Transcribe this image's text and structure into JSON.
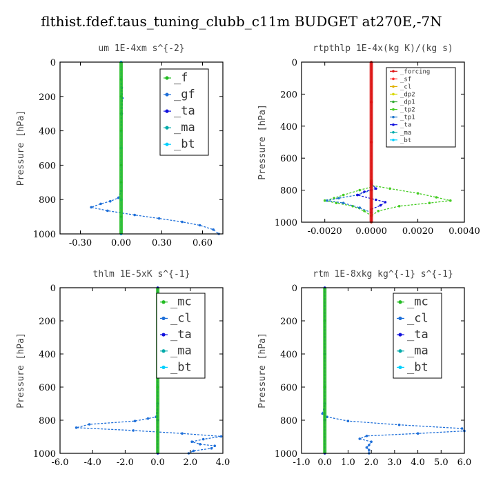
{
  "figure_title": "flthist.fdef.taus_tuning_clubb_c11m  BUDGET at270E,-7N",
  "colors": {
    "f": "#22bb22",
    "gf": "#1e6fd9",
    "ta": "#1111dd",
    "ma": "#00aaaa",
    "bt": "#00d0ff",
    "forcing": "#dd1111",
    "sf": "#ff3030",
    "cl_small": "#e0b000",
    "dp2": "#d8d800",
    "dp1": "#33aa33",
    "tp2": "#44cc22",
    "tp1": "#2277cc",
    "mc": "#22bb22",
    "cl": "#1e6fd9"
  },
  "chart_data": [
    {
      "type": "line",
      "title": "um  1E-4xm s^{-2}",
      "ylabel": "Pressure [hPa]",
      "xlim": [
        -0.45,
        0.75
      ],
      "ylim": [
        0,
        1000
      ],
      "y_inverted": true,
      "xticks": [
        -0.3,
        0.0,
        0.3,
        0.6
      ],
      "xtick_labels": [
        "-0.30",
        "0.00",
        "0.30",
        "0.60"
      ],
      "yticks": [
        0,
        200,
        400,
        600,
        800,
        1000
      ],
      "ytick_labels": [
        "0",
        "200",
        "400",
        "600",
        "800",
        "1000"
      ],
      "legend_size": "big",
      "legend": [
        "_f",
        "_gf",
        "_ta",
        "_ma",
        "_bt"
      ],
      "series": [
        {
          "name": "_f",
          "color_key": "f",
          "points": [
            [
              0.0,
              0
            ],
            [
              0.0,
              100
            ],
            [
              0.0,
              200
            ],
            [
              0.0,
              300
            ],
            [
              0.0,
              400
            ],
            [
              0.0,
              500
            ],
            [
              0.0,
              600
            ],
            [
              0.0,
              700
            ],
            [
              0.0,
              800
            ],
            [
              0.0,
              900
            ],
            [
              0.0,
              1000
            ]
          ]
        },
        {
          "name": "_gf",
          "color_key": "gf",
          "points": [
            [
              0.0,
              0
            ],
            [
              0.005,
              150
            ],
            [
              0.01,
              210
            ],
            [
              0.005,
              300
            ],
            [
              0.0,
              500
            ],
            [
              0.0,
              750
            ],
            [
              -0.02,
              790
            ],
            [
              -0.08,
              810
            ],
            [
              -0.15,
              825
            ],
            [
              -0.22,
              845
            ],
            [
              -0.1,
              865
            ],
            [
              0.1,
              890
            ],
            [
              0.28,
              910
            ],
            [
              0.45,
              930
            ],
            [
              0.58,
              950
            ],
            [
              0.68,
              975
            ],
            [
              0.72,
              1000
            ]
          ]
        },
        {
          "name": "_ta",
          "color_key": "ta",
          "points": [
            [
              0.0,
              0
            ],
            [
              0.0,
              500
            ],
            [
              0.0,
              800
            ],
            [
              0.0,
              1000
            ]
          ]
        },
        {
          "name": "_ma",
          "color_key": "ma",
          "points": [
            [
              0.0,
              0
            ],
            [
              0.0,
              500
            ],
            [
              0.0,
              800
            ],
            [
              0.0,
              1000
            ]
          ]
        },
        {
          "name": "_bt",
          "color_key": "bt",
          "points": [
            [
              0.0,
              0
            ],
            [
              0.0,
              500
            ],
            [
              0.0,
              800
            ],
            [
              0.0,
              1000
            ]
          ]
        }
      ]
    },
    {
      "type": "line",
      "title": "rtpthlp  1E-4x(kg K)/(kg s)",
      "ylabel": "Pressure [hPa]",
      "xlim": [
        -0.003,
        0.004
      ],
      "ylim": [
        0,
        1000
      ],
      "y_inverted": true,
      "xticks": [
        -0.002,
        0.0,
        0.002,
        0.004
      ],
      "xtick_labels": [
        "-0.0020",
        "0.0000",
        "0.0020",
        "0.0040"
      ],
      "yticks": [
        0,
        200,
        400,
        600,
        800,
        1000
      ],
      "ytick_labels": [
        "0",
        "200",
        "400",
        "600",
        "800",
        "1000"
      ],
      "legend_size": "small",
      "legend": [
        "_forcing",
        "_sf",
        "_cl",
        "_dp2",
        "_dp1",
        "_tp2",
        "_tp1",
        "_ta",
        "_ma",
        "_bt"
      ],
      "series": [
        {
          "name": "_tp2",
          "color_key": "tp2",
          "points": [
            [
              0.0,
              0
            ],
            [
              0.0,
              740
            ],
            [
              0.0,
              770
            ],
            [
              0.0008,
              790
            ],
            [
              0.002,
              820
            ],
            [
              0.0028,
              845
            ],
            [
              0.0034,
              865
            ],
            [
              0.0025,
              880
            ],
            [
              0.0012,
              900
            ],
            [
              0.0003,
              930
            ],
            [
              0.0,
              960
            ],
            [
              0.0,
              1000
            ]
          ]
        },
        {
          "name": "_tp2b",
          "color_key": "tp2",
          "points": [
            [
              0.0,
              780
            ],
            [
              -0.0005,
              800
            ],
            [
              -0.0012,
              830
            ],
            [
              -0.0016,
              850
            ],
            [
              -0.002,
              865
            ],
            [
              -0.0015,
              880
            ],
            [
              -0.0008,
              900
            ],
            [
              -0.0003,
              930
            ],
            [
              0.0,
              960
            ]
          ]
        },
        {
          "name": "_tp1",
          "color_key": "tp1",
          "points": [
            [
              0.0,
              800
            ],
            [
              -0.0006,
              830
            ],
            [
              -0.0014,
              850
            ],
            [
              -0.0019,
              865
            ],
            [
              -0.0012,
              880
            ],
            [
              -0.0005,
              910
            ],
            [
              0.0,
              940
            ]
          ]
        },
        {
          "name": "_ta",
          "color_key": "ta",
          "points": [
            [
              0.0,
              760
            ],
            [
              0.0002,
              790
            ],
            [
              -0.0003,
              810
            ],
            [
              -0.0006,
              830
            ],
            [
              0.0002,
              860
            ],
            [
              0.0006,
              875
            ],
            [
              0.0004,
              895
            ],
            [
              0.0,
              920
            ]
          ]
        },
        {
          "name": "_forcing",
          "color_key": "forcing",
          "points": [
            [
              0.0,
              0
            ],
            [
              0.0,
              250
            ],
            [
              0.0,
              500
            ],
            [
              0.0,
              750
            ],
            [
              0.0,
              1000
            ]
          ]
        }
      ]
    },
    {
      "type": "line",
      "title": "thlm  1E-5xK s^{-1}",
      "ylabel": "Pressure [hPa]",
      "xlim": [
        -6.0,
        4.0
      ],
      "ylim": [
        0,
        1000
      ],
      "y_inverted": true,
      "xticks": [
        -6,
        -4,
        -2,
        0,
        2,
        4
      ],
      "xtick_labels": [
        "-6.0",
        "-4.0",
        "-2.0",
        "0.0",
        "2.0",
        "4.0"
      ],
      "yticks": [
        0,
        200,
        400,
        600,
        800,
        1000
      ],
      "ytick_labels": [
        "0",
        "200",
        "400",
        "600",
        "800",
        "1000"
      ],
      "legend_size": "big",
      "legend": [
        "_mc",
        "_cl",
        "_ta",
        "_ma",
        "_bt"
      ],
      "series": [
        {
          "name": "_mc",
          "color_key": "mc",
          "points": [
            [
              0.0,
              0
            ],
            [
              0.0,
              200
            ],
            [
              0.0,
              400
            ],
            [
              0.0,
              600
            ],
            [
              0.0,
              800
            ],
            [
              0.0,
              1000
            ]
          ]
        },
        {
          "name": "_cl",
          "color_key": "cl",
          "points": [
            [
              0.0,
              0
            ],
            [
              0.0,
              400
            ],
            [
              0.0,
              700
            ],
            [
              -0.1,
              780
            ],
            [
              -0.6,
              790
            ],
            [
              -1.4,
              805
            ],
            [
              -4.2,
              825
            ],
            [
              -5.0,
              845
            ],
            [
              -1.5,
              862
            ],
            [
              1.5,
              880
            ],
            [
              3.9,
              898
            ],
            [
              2.8,
              915
            ],
            [
              2.1,
              930
            ],
            [
              2.6,
              945
            ],
            [
              3.5,
              955
            ],
            [
              3.3,
              970
            ],
            [
              2.2,
              985
            ],
            [
              1.9,
              1000
            ]
          ]
        },
        {
          "name": "_ta",
          "color_key": "ta",
          "points": [
            [
              0.0,
              0
            ],
            [
              0.0,
              800
            ],
            [
              0.0,
              1000
            ]
          ]
        }
      ]
    },
    {
      "type": "line",
      "title": "rtm  1E-8xkg kg^{-1} s^{-1}",
      "ylabel": "Pressure [hPa]",
      "xlim": [
        -1.0,
        6.0
      ],
      "ylim": [
        0,
        1000
      ],
      "y_inverted": true,
      "xticks": [
        -1,
        0,
        1,
        2,
        3,
        4,
        5,
        6
      ],
      "xtick_labels": [
        "-1.0",
        "0.0",
        "1.0",
        "2.0",
        "3.0",
        "4.0",
        "5.0",
        "6.0"
      ],
      "yticks": [
        0,
        200,
        400,
        600,
        800,
        1000
      ],
      "ytick_labels": [
        "0",
        "200",
        "400",
        "600",
        "800",
        "1000"
      ],
      "legend_size": "big",
      "legend": [
        "_mc",
        "_cl",
        "_ta",
        "_ma",
        "_bt"
      ],
      "series": [
        {
          "name": "_mc",
          "color_key": "mc",
          "points": [
            [
              0.0,
              0
            ],
            [
              0.0,
              200
            ],
            [
              0.0,
              400
            ],
            [
              0.0,
              600
            ],
            [
              0.0,
              800
            ],
            [
              0.0,
              1000
            ]
          ]
        },
        {
          "name": "_cl",
          "color_key": "cl",
          "points": [
            [
              0.0,
              0
            ],
            [
              0.0,
              400
            ],
            [
              0.0,
              700
            ],
            [
              -0.1,
              760
            ],
            [
              0.1,
              780
            ],
            [
              1.0,
              805
            ],
            [
              3.2,
              828
            ],
            [
              5.9,
              850
            ],
            [
              6.0,
              865
            ],
            [
              4.0,
              880
            ],
            [
              1.8,
              895
            ],
            [
              1.5,
              912
            ],
            [
              2.0,
              930
            ],
            [
              1.9,
              950
            ],
            [
              1.8,
              965
            ],
            [
              1.9,
              980
            ],
            [
              1.9,
              1000
            ]
          ]
        },
        {
          "name": "_ta",
          "color_key": "ta",
          "points": [
            [
              0.0,
              0
            ],
            [
              0.0,
              800
            ],
            [
              0.0,
              1000
            ]
          ]
        }
      ]
    }
  ]
}
